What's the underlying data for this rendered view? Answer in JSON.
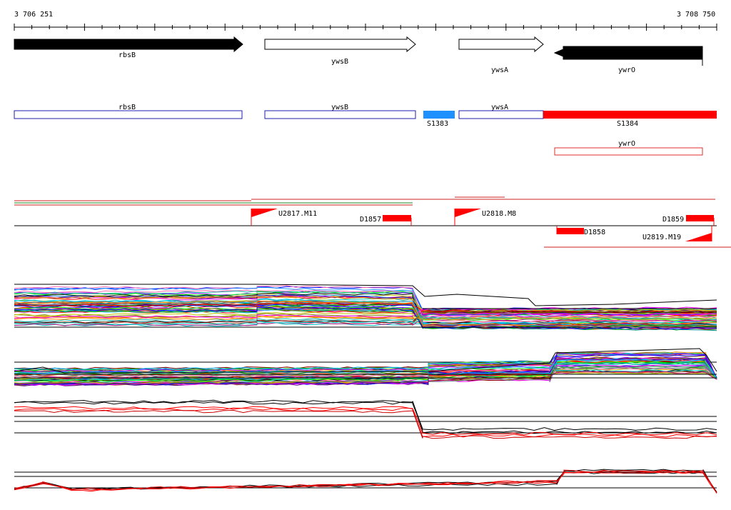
{
  "coords": {
    "start": "3 706 251",
    "end": "3 708 750"
  },
  "genes_track": [
    {
      "label": "rbsB",
      "strand": "+",
      "fill": "#000000"
    },
    {
      "label": "ywsB",
      "strand": "+",
      "fill": "#ffffff"
    },
    {
      "label": "ywsA",
      "strand": "+",
      "fill": "#ffffff"
    },
    {
      "label": "ywrO",
      "strand": "-",
      "fill": "#000000"
    }
  ],
  "annotation_track": [
    {
      "label": "rbsB",
      "kind": "gene",
      "color": "#1f1fb0"
    },
    {
      "label": "ywsB",
      "kind": "gene",
      "color": "#1f1fb0"
    },
    {
      "label": "S1383",
      "kind": "segment",
      "color": "#1e90ff"
    },
    {
      "label": "ywsA",
      "kind": "gene",
      "color": "#1f1fb0"
    },
    {
      "label": "S1384",
      "kind": "segment",
      "color": "#ff0000"
    },
    {
      "label": "ywrO",
      "kind": "gene",
      "color": "#ff0000"
    }
  ],
  "features": [
    {
      "label": "U2817.M11",
      "type": "upshift"
    },
    {
      "label": "D1857",
      "type": "downshift"
    },
    {
      "label": "U2818.M8",
      "type": "upshift"
    },
    {
      "label": "D1859",
      "type": "downshift"
    },
    {
      "label": "D1858",
      "type": "downshift"
    },
    {
      "label": "U2819.M19",
      "type": "upshift"
    }
  ],
  "colors": {
    "accent": "#ff0000",
    "blue": "#1e90ff",
    "gene_outline": "#1f1fb0"
  }
}
